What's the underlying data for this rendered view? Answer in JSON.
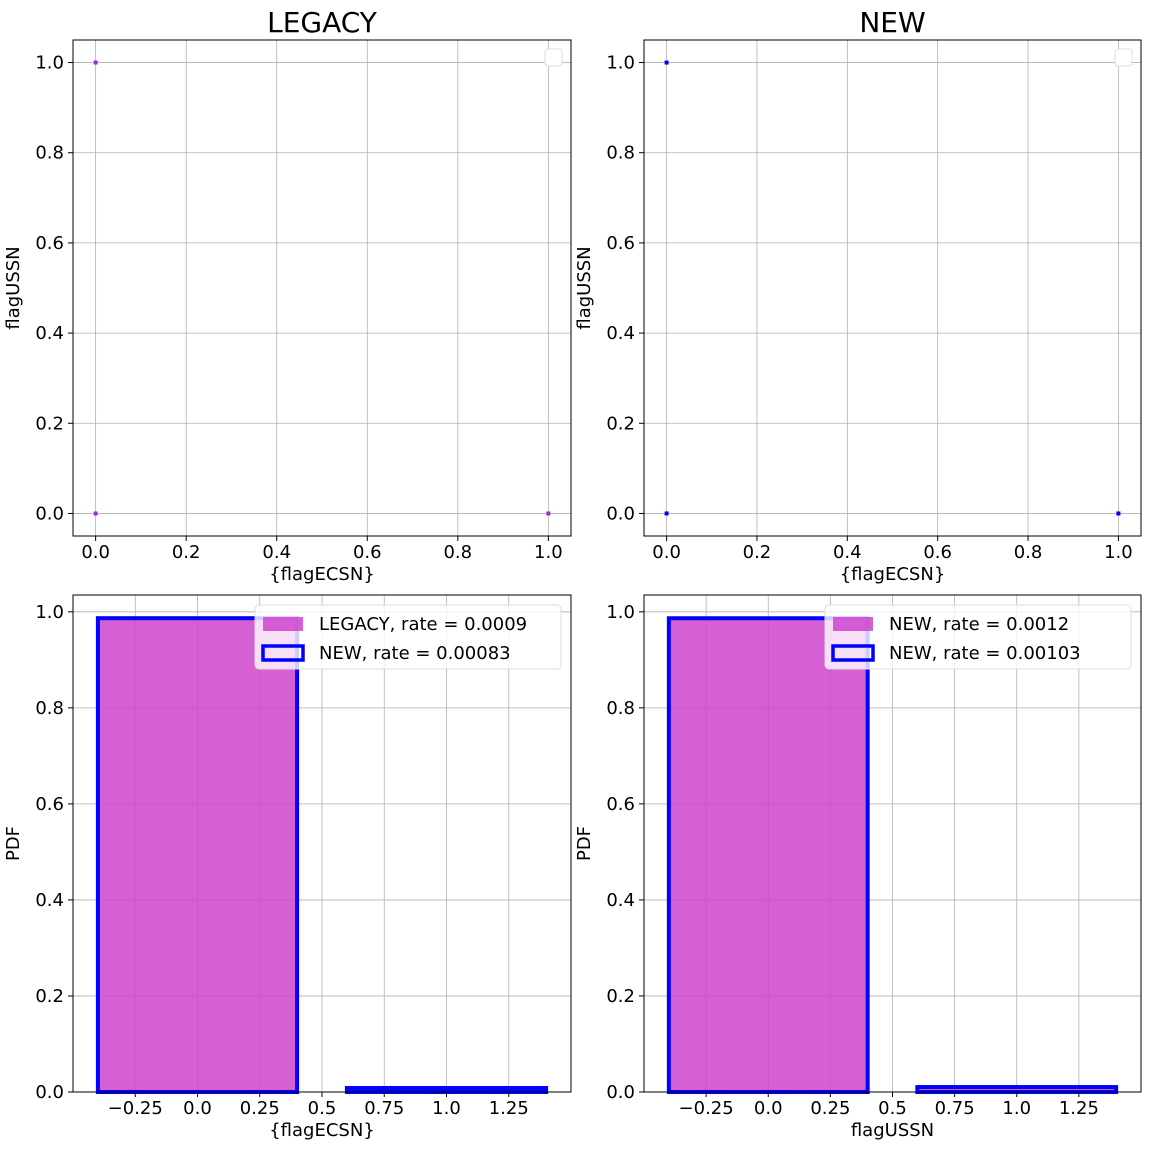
{
  "chart_data": [
    {
      "type": "scatter",
      "title": "LEGACY",
      "xlabel": "{flagECSN}",
      "ylabel": "flagUSSN",
      "xlim": [
        -0.05,
        1.05
      ],
      "ylim": [
        -0.05,
        1.05
      ],
      "xticks": [
        0.0,
        0.2,
        0.4,
        0.6,
        0.8,
        1.0
      ],
      "yticks": [
        0.0,
        0.2,
        0.4,
        0.6,
        0.8,
        1.0
      ],
      "grid": true,
      "legend": "top-right (empty)",
      "series": [
        {
          "color": "#9b30c8",
          "points": [
            [
              0,
              1
            ],
            [
              0,
              0
            ],
            [
              1,
              0
            ]
          ]
        }
      ]
    },
    {
      "type": "scatter",
      "title": "NEW",
      "xlabel": "{flagECSN}",
      "ylabel": "flagUSSN",
      "xlim": [
        -0.05,
        1.05
      ],
      "ylim": [
        -0.05,
        1.05
      ],
      "xticks": [
        0.0,
        0.2,
        0.4,
        0.6,
        0.8,
        1.0
      ],
      "yticks": [
        0.0,
        0.2,
        0.4,
        0.6,
        0.8,
        1.0
      ],
      "grid": true,
      "legend": "top-right (empty)",
      "series": [
        {
          "color": "#0000ff",
          "points": [
            [
              0,
              1
            ],
            [
              0,
              0
            ],
            [
              1,
              0
            ]
          ]
        }
      ]
    },
    {
      "type": "bar",
      "title": "",
      "xlabel": "{flagECSN}",
      "ylabel": "PDF",
      "xlim": [
        -0.5,
        1.5
      ],
      "ylim": [
        0,
        1.035
      ],
      "xticks": [
        -0.25,
        0.0,
        0.25,
        0.5,
        0.75,
        1.0,
        1.25
      ],
      "yticks": [
        0.0,
        0.2,
        0.4,
        0.6,
        0.8,
        1.0
      ],
      "grid": true,
      "legend": "top-right",
      "series": [
        {
          "name": "LEGACY, rate = 0.0009",
          "style": "filled",
          "color": "#cc44cc",
          "bins": [
            [
              -0.4,
              0.4,
              0.9865
            ],
            [
              0.6,
              1.4,
              0.009
            ]
          ]
        },
        {
          "name": "NEW, rate = 0.00083",
          "style": "outline",
          "color": "#0000ff",
          "bins": [
            [
              -0.4,
              0.4,
              0.9867
            ],
            [
              0.6,
              1.4,
              0.0083
            ]
          ]
        }
      ]
    },
    {
      "type": "bar",
      "title": "",
      "xlabel": "flagUSSN",
      "ylabel": "PDF",
      "xlim": [
        -0.5,
        1.5
      ],
      "ylim": [
        0,
        1.035
      ],
      "xticks": [
        -0.25,
        0.0,
        0.25,
        0.5,
        0.75,
        1.0,
        1.25
      ],
      "yticks": [
        0.0,
        0.2,
        0.4,
        0.6,
        0.8,
        1.0
      ],
      "grid": true,
      "legend": "top-right",
      "series": [
        {
          "name": "NEW, rate = 0.0012",
          "style": "filled",
          "color": "#cc44cc",
          "bins": [
            [
              -0.4,
              0.4,
              0.9864
            ],
            [
              0.6,
              1.4,
              0.012
            ]
          ]
        },
        {
          "name": "NEW, rate = 0.00103",
          "style": "outline",
          "color": "#0000ff",
          "bins": [
            [
              -0.4,
              0.4,
              0.9866
            ],
            [
              0.6,
              1.4,
              0.0103
            ]
          ]
        }
      ]
    }
  ]
}
